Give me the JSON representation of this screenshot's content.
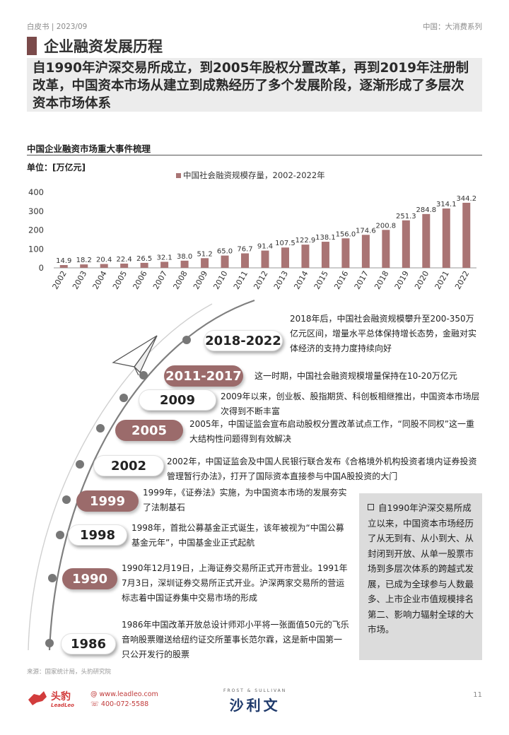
{
  "topbar": {
    "left": "白皮书 | 2023/09",
    "right": "中国：大消费系列"
  },
  "section_title": "企业融资发展历程",
  "headline": "自1990年沪深交易所成立，到2005年股权分置改革，再到2019年注册制改革，中国资本市场从建立到成熟经历了多个发展阶段，逐渐形成了多层次资本市场体系",
  "chart_title": "中国企业融资市场重大事件梳理",
  "unit_label": "单位：[万亿元]",
  "chart_data": {
    "type": "bar",
    "legend": "中国社会融资规模存量，2002-2022年",
    "categories": [
      "2002",
      "2003",
      "2004",
      "2005",
      "2006",
      "2007",
      "2008",
      "2009",
      "2010",
      "2011",
      "2012",
      "2013",
      "2014",
      "2015",
      "2016",
      "2017",
      "2018",
      "2019",
      "2020",
      "2021",
      "2022"
    ],
    "values": [
      14.9,
      18.2,
      20.4,
      22.4,
      26.5,
      32.1,
      38.0,
      51.2,
      65.0,
      76.7,
      91.4,
      107.5,
      122.9,
      138.1,
      156.0,
      174.6,
      200.8,
      251.3,
      284.8,
      314.1,
      344.2
    ],
    "value_labels": [
      "14.9",
      "18.2",
      "20.4",
      "22.4",
      "26.5",
      "32.1",
      "38.0",
      "51.2",
      "65.0",
      "76.7",
      "91.4",
      "107.5",
      "122.9",
      "138.1",
      "156.0",
      "174.6",
      "200.8",
      "251.3",
      "284.8",
      "314.1",
      "344.2"
    ],
    "y_ticks": [
      "0",
      "100",
      "200",
      "300",
      "400"
    ],
    "ylim": [
      0,
      400
    ],
    "bar_color": "#a97474"
  },
  "timeline": [
    {
      "id": "2018-2022",
      "label": "2018-2022",
      "style": "light",
      "text": "2018年后，中国社会融资规模攀升至200-350万亿元区间，增量水平总体保持增长态势，金融对实体经济的支持力度持续向好"
    },
    {
      "id": "2011-2017",
      "label": "2011-2017",
      "style": "dark",
      "text": "这一时期，中国社会融资规模增量保持在10-20万亿元"
    },
    {
      "id": "2009",
      "label": "2009",
      "style": "light",
      "text": "2009年以来，创业板、股指期货、科创板相继推出，中国资本市场层次得到不断丰富"
    },
    {
      "id": "2005",
      "label": "2005",
      "style": "dark",
      "text": "2005年，中国证监会宣布启动股权分置改革试点工作，“同股不同权”这一重大结构性问题得到有效解决"
    },
    {
      "id": "2002",
      "label": "2002",
      "style": "light",
      "text": "2002年，中国证监会及中国人民银行联合发布《合格境外机构投资者境内证券投资管理暂行办法》，打开了国际资本直接参与中国A股投资的大门"
    },
    {
      "id": "1999",
      "label": "1999",
      "style": "dark",
      "text": "1999年，《证券法》实施，为中国资本市场的发展夯实了法制基石"
    },
    {
      "id": "1998",
      "label": "1998",
      "style": "light",
      "text": "1998年，首批公募基金正式诞生，该年被视为“中国公募基金元年”，中国基金业正式起航"
    },
    {
      "id": "1990",
      "label": "1990",
      "style": "dark",
      "text": "1990年12月19日，上海证券交易所正式开市营业。1991年7月3日，深圳证券交易所正式开业。沪深两家交易所的营运标志着中国证券集中交易市场的形成"
    },
    {
      "id": "1986",
      "label": "1986",
      "style": "light",
      "text": "1986年中国改革开放总设计师邓小平将一张面值50元的飞乐音响股票赠送给纽约证交所董事长范尔霖，这是新中国第一只公开发行的股票"
    }
  ],
  "sidebox": "自1990年沪深交易所成立以来，中国资本市场经历了从无到有、从小到大、从封闭到开放、从单一股票市场到多层次体系的跨越式发展，已成为全球参与人数最多、上市企业市值规模排名第二、影响力辐射全球的大市场。",
  "source": "来源：国家统计局，头豹研究院",
  "footer": {
    "logo_text": "头豹",
    "logo_sub": "LeadLeo",
    "website": "www.leadleo.com",
    "phone": "400-072-5588",
    "partner_small": "FROST & SULLIVAN",
    "partner_big": "沙利文",
    "page": "11"
  },
  "colors": {
    "accent": "#9b6b6b",
    "title_bar": "#7a4a4a",
    "bar": "#a97474"
  }
}
